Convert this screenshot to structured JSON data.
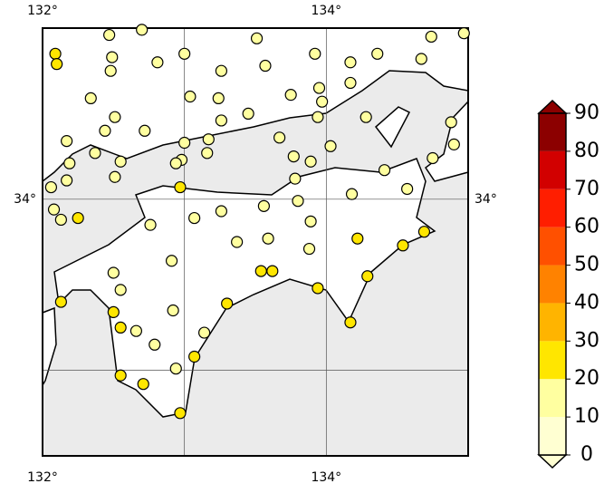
{
  "chart_data": {
    "type": "scatter",
    "xlim": [
      132,
      135
    ],
    "ylim": [
      32.5,
      35
    ],
    "xticks": [
      {
        "value": 132,
        "label": "132°"
      },
      {
        "value": 133,
        "label": null
      },
      {
        "value": 134,
        "label": "134°"
      },
      {
        "value": 135,
        "label": null
      }
    ],
    "yticks": [
      {
        "value": 33,
        "label": null
      },
      {
        "value": 34,
        "label": "34°"
      }
    ],
    "grid": true,
    "x": [
      132.47,
      132.7,
      132.09,
      132.1,
      132.49,
      132.81,
      133.0,
      133.51,
      133.57,
      133.92,
      134.17,
      134.36,
      134.74,
      134.97,
      134.67,
      132.48,
      133.26,
      132.34,
      133.04,
      133.24,
      133.75,
      133.95,
      134.17,
      133.97,
      132.51,
      133.26,
      133.45,
      133.94,
      134.28,
      134.88,
      132.17,
      132.44,
      132.72,
      133.0,
      133.17,
      133.16,
      132.98,
      133.67,
      134.03,
      134.9,
      132.19,
      132.37,
      132.55,
      132.94,
      133.77,
      133.89,
      134.41,
      134.75,
      132.06,
      132.17,
      132.51,
      132.97,
      133.78,
      134.18,
      134.57,
      132.08,
      132.25,
      132.13,
      132.76,
      133.07,
      133.26,
      133.56,
      133.8,
      133.89,
      134.22,
      134.69,
      134.54,
      133.37,
      133.59,
      133.88,
      132.5,
      132.91,
      133.54,
      133.62,
      134.29,
      132.55,
      132.13,
      133.3,
      133.94,
      132.5,
      132.92,
      132.55,
      132.66,
      133.14,
      134.17,
      132.79,
      133.07,
      132.55,
      132.94,
      132.71,
      132.97
    ],
    "y": [
      34.96,
      34.99,
      34.85,
      34.79,
      34.83,
      34.8,
      34.85,
      34.94,
      34.78,
      34.85,
      34.8,
      34.85,
      34.95,
      34.97,
      34.82,
      34.75,
      34.75,
      34.59,
      34.6,
      34.59,
      34.61,
      34.65,
      34.68,
      34.57,
      34.48,
      34.46,
      34.5,
      34.48,
      34.48,
      34.45,
      34.34,
      34.4,
      34.4,
      34.33,
      34.35,
      34.27,
      34.23,
      34.36,
      34.31,
      34.32,
      34.21,
      34.27,
      34.22,
      34.21,
      34.25,
      34.22,
      34.17,
      34.24,
      34.07,
      34.11,
      34.13,
      34.07,
      34.12,
      34.03,
      34.06,
      33.94,
      33.89,
      33.88,
      33.85,
      33.89,
      33.93,
      33.96,
      33.99,
      33.87,
      33.77,
      33.81,
      33.73,
      33.75,
      33.77,
      33.71,
      33.57,
      33.64,
      33.58,
      33.58,
      33.55,
      33.47,
      33.4,
      33.39,
      33.48,
      33.34,
      33.35,
      33.25,
      33.23,
      33.22,
      33.28,
      33.15,
      33.08,
      32.97,
      33.01,
      32.92,
      32.75
    ],
    "values": [
      15,
      15,
      25,
      25,
      15,
      15,
      15,
      15,
      15,
      15,
      15,
      15,
      15,
      15,
      15,
      15,
      15,
      15,
      15,
      15,
      15,
      15,
      15,
      15,
      15,
      15,
      15,
      15,
      15,
      15,
      15,
      15,
      15,
      15,
      15,
      15,
      15,
      15,
      15,
      15,
      15,
      15,
      15,
      15,
      15,
      15,
      15,
      15,
      15,
      15,
      15,
      25,
      15,
      15,
      15,
      15,
      25,
      15,
      15,
      15,
      15,
      15,
      15,
      15,
      25,
      25,
      25,
      15,
      15,
      15,
      15,
      15,
      25,
      25,
      25,
      15,
      25,
      25,
      25,
      25,
      15,
      25,
      15,
      15,
      25,
      15,
      25,
      25,
      15,
      25,
      25
    ],
    "colorbar": {
      "levels": [
        0,
        10,
        20,
        30,
        40,
        50,
        60,
        70,
        80,
        90
      ],
      "colors": [
        "#ffffd2",
        "#ffffa0",
        "#ffe600",
        "#ffb400",
        "#ff8200",
        "#ff5000",
        "#ff1e00",
        "#d20000",
        "#8c0000"
      ]
    }
  }
}
